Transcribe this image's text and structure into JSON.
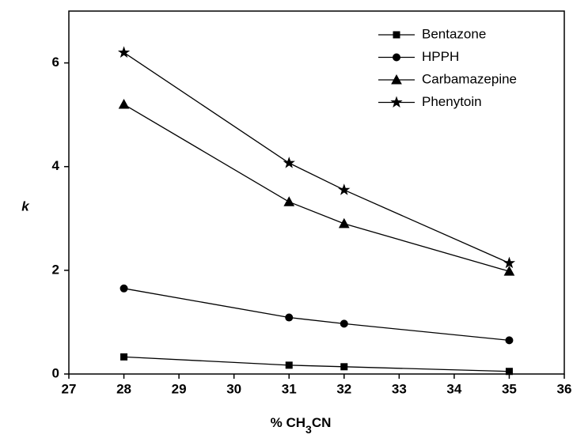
{
  "chart_data": {
    "type": "line",
    "xlabel": [
      "% CH",
      "3",
      "CN"
    ],
    "ylabel": "k",
    "x": [
      28,
      31,
      32,
      35
    ],
    "xlim": [
      27,
      36
    ],
    "xticks": [
      27,
      28,
      29,
      30,
      31,
      32,
      33,
      34,
      35,
      36
    ],
    "ylim": [
      0,
      7
    ],
    "yticks": [
      0,
      2,
      4,
      6
    ],
    "legend": "upper right",
    "series": [
      {
        "name": "Bentazone",
        "color": "#000000",
        "marker": "square",
        "values": [
          0.33,
          0.17,
          0.14,
          0.05
        ]
      },
      {
        "name": "HPPH",
        "color": "#000000",
        "marker": "circle",
        "values": [
          1.65,
          1.09,
          0.97,
          0.65
        ]
      },
      {
        "name": "Carbamazepine",
        "color": "#000000",
        "marker": "triangle",
        "values": [
          5.2,
          3.32,
          2.9,
          1.98
        ]
      },
      {
        "name": "Phenytoin",
        "color": "#000000",
        "marker": "star",
        "values": [
          6.2,
          4.07,
          3.55,
          2.14
        ]
      }
    ]
  }
}
